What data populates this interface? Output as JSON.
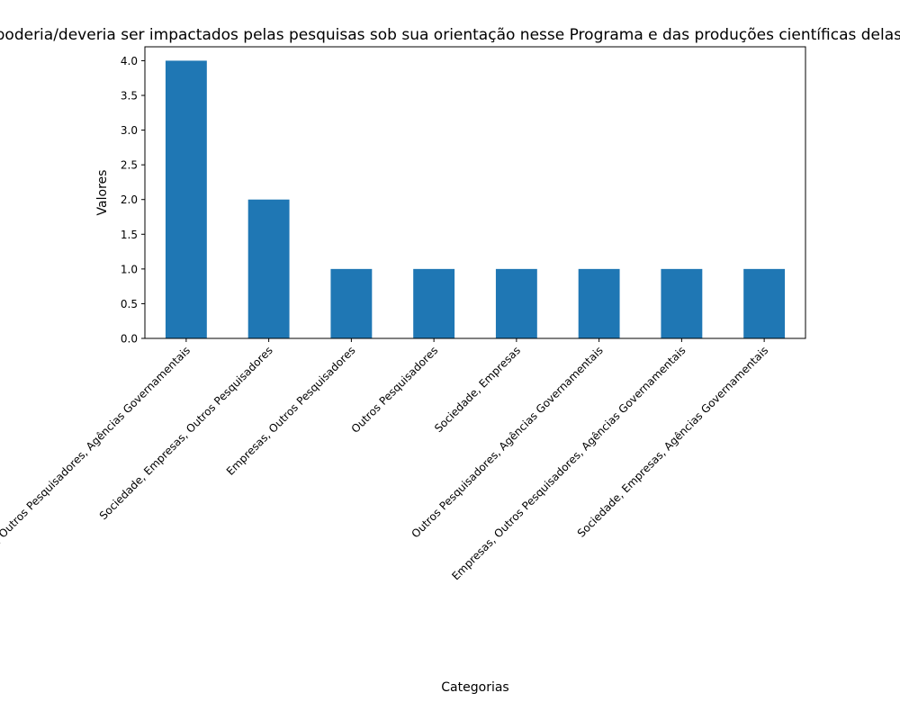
{
  "chart_data": {
    "type": "bar",
    "title": "Quem poderia/deveria ser impactados pelas pesquisas sob sua orientação nesse Programa e das produções científicas delas decorrentes?",
    "xlabel": "Categorias",
    "ylabel": "Valores",
    "categories": [
      "Sociedade, Empresas, Outros Pesquisadores, Agências Governamentais",
      "Sociedade, Empresas, Outros Pesquisadores",
      "Empresas, Outros Pesquisadores",
      "Outros Pesquisadores",
      "Sociedade, Empresas",
      "Outros Pesquisadores, Agências Governamentais",
      "Empresas, Outros Pesquisadores, Agências Governamentais",
      "Sociedade, Empresas, Agências Governamentais"
    ],
    "values": [
      4,
      2,
      1,
      1,
      1,
      1,
      1,
      1
    ],
    "ylim": [
      0,
      4.2
    ],
    "yticks": [
      "0.0",
      "0.5",
      "1.0",
      "1.5",
      "2.0",
      "2.5",
      "3.0",
      "3.5",
      "4.0"
    ],
    "bar_color": "#1f77b4",
    "grid": false,
    "legend": "none"
  }
}
